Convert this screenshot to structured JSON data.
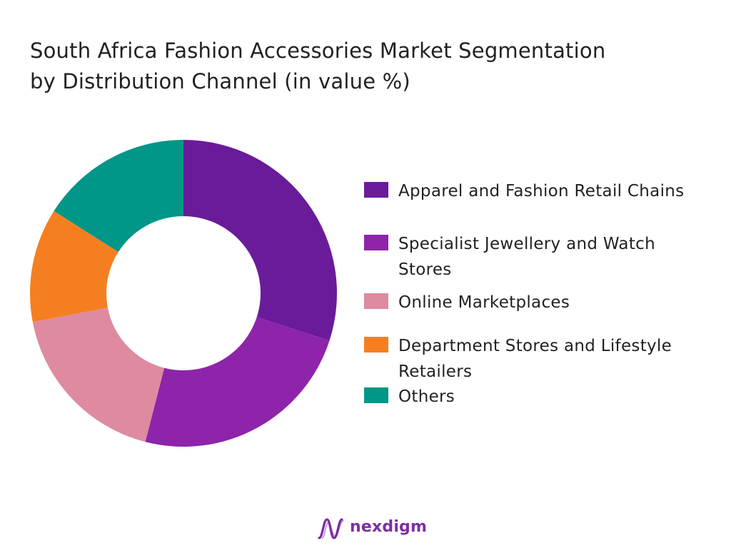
{
  "colors": {
    "apparel": "#6a1b9a",
    "specialist": "#8e24aa",
    "online": "#de8aa0",
    "department": "#f57f20",
    "others": "#009688",
    "logo": "#7b2fa0"
  },
  "title": {
    "line1": "South Africa Fashion Accessories Market Segmentation",
    "line2": "by Distribution Channel (in value %)"
  },
  "chart_data": {
    "type": "pie",
    "variant": "donut",
    "title": "South Africa Fashion Accessories Market Segmentation by Distribution Channel (in value %)",
    "categories": [
      "Apparel and Fashion Retail Chains",
      "Specialist Jewellery and Watch Stores",
      "Online Marketplaces",
      "Department Stores and Lifestyle Retailers",
      "Others"
    ],
    "values": [
      30,
      24,
      18,
      12,
      16
    ],
    "legend_position": "right",
    "data_labels": false
  },
  "legend": {
    "items": [
      {
        "lines": [
          "Apparel and Fashion Retail Chains"
        ],
        "color_key": "apparel"
      },
      {
        "lines": [
          "Specialist Jewellery and Watch",
          "Stores"
        ],
        "color_key": "specialist"
      },
      {
        "lines": [
          "Online Marketplaces"
        ],
        "color_key": "online"
      },
      {
        "lines": [
          "Department Stores and Lifestyle",
          "Retailers"
        ],
        "color_key": "department"
      },
      {
        "lines": [
          "Others"
        ],
        "color_key": "others"
      }
    ]
  },
  "logo": {
    "text": "nexdigm",
    "icon": "nexdigm-wave-logo-icon"
  }
}
